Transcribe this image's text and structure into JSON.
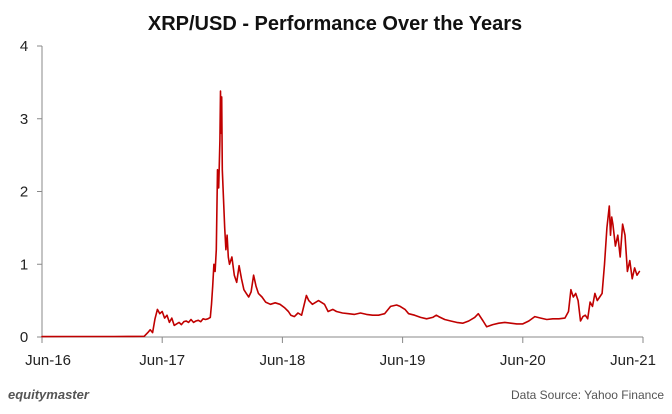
{
  "chart_data": {
    "type": "line",
    "title": "XRP/USD - Performance Over the Years",
    "xlabel": "",
    "ylabel": "",
    "x_ticks": [
      "Jun-16",
      "Jun-17",
      "Jun-18",
      "Jun-19",
      "Jun-20",
      "Jun-21"
    ],
    "x_tick_values": [
      2016.5,
      2017.5,
      2018.5,
      2019.5,
      2020.5,
      2021.5
    ],
    "xlim": [
      2016.5,
      2021.5
    ],
    "ylim": [
      0,
      4
    ],
    "y_ticks": [
      0,
      1,
      2,
      3,
      4
    ],
    "grid": false,
    "legend": "none",
    "series": [
      {
        "name": "",
        "color": "#c00000",
        "points": [
          [
            2016.5,
            0.006
          ],
          [
            2016.7,
            0.007
          ],
          [
            2016.9,
            0.007
          ],
          [
            2017.1,
            0.007
          ],
          [
            2017.25,
            0.008
          ],
          [
            2017.35,
            0.01
          ],
          [
            2017.38,
            0.06
          ],
          [
            2017.4,
            0.1
          ],
          [
            2017.42,
            0.06
          ],
          [
            2017.44,
            0.25
          ],
          [
            2017.46,
            0.38
          ],
          [
            2017.48,
            0.32
          ],
          [
            2017.5,
            0.35
          ],
          [
            2017.52,
            0.26
          ],
          [
            2017.54,
            0.3
          ],
          [
            2017.56,
            0.2
          ],
          [
            2017.58,
            0.26
          ],
          [
            2017.6,
            0.16
          ],
          [
            2017.62,
            0.18
          ],
          [
            2017.64,
            0.2
          ],
          [
            2017.66,
            0.17
          ],
          [
            2017.68,
            0.21
          ],
          [
            2017.7,
            0.22
          ],
          [
            2017.72,
            0.2
          ],
          [
            2017.74,
            0.24
          ],
          [
            2017.76,
            0.2
          ],
          [
            2017.78,
            0.22
          ],
          [
            2017.8,
            0.23
          ],
          [
            2017.82,
            0.21
          ],
          [
            2017.84,
            0.25
          ],
          [
            2017.86,
            0.24
          ],
          [
            2017.88,
            0.25
          ],
          [
            2017.9,
            0.27
          ],
          [
            2017.91,
            0.45
          ],
          [
            2017.92,
            0.7
          ],
          [
            2017.93,
            1.0
          ],
          [
            2017.94,
            0.9
          ],
          [
            2017.95,
            1.2
          ],
          [
            2017.96,
            2.3
          ],
          [
            2017.97,
            2.05
          ],
          [
            2017.98,
            2.7
          ],
          [
            2017.985,
            3.38
          ],
          [
            2017.99,
            2.8
          ],
          [
            2017.995,
            3.3
          ],
          [
            2018.0,
            2.3
          ],
          [
            2018.01,
            1.9
          ],
          [
            2018.02,
            1.5
          ],
          [
            2018.03,
            1.2
          ],
          [
            2018.04,
            1.4
          ],
          [
            2018.05,
            1.1
          ],
          [
            2018.06,
            1.0
          ],
          [
            2018.08,
            1.1
          ],
          [
            2018.1,
            0.85
          ],
          [
            2018.12,
            0.75
          ],
          [
            2018.14,
            0.98
          ],
          [
            2018.16,
            0.8
          ],
          [
            2018.18,
            0.65
          ],
          [
            2018.2,
            0.6
          ],
          [
            2018.22,
            0.55
          ],
          [
            2018.24,
            0.62
          ],
          [
            2018.26,
            0.85
          ],
          [
            2018.28,
            0.7
          ],
          [
            2018.3,
            0.6
          ],
          [
            2018.33,
            0.55
          ],
          [
            2018.36,
            0.48
          ],
          [
            2018.4,
            0.45
          ],
          [
            2018.44,
            0.47
          ],
          [
            2018.48,
            0.45
          ],
          [
            2018.52,
            0.4
          ],
          [
            2018.55,
            0.35
          ],
          [
            2018.57,
            0.3
          ],
          [
            2018.6,
            0.28
          ],
          [
            2018.63,
            0.33
          ],
          [
            2018.66,
            0.3
          ],
          [
            2018.7,
            0.57
          ],
          [
            2018.72,
            0.5
          ],
          [
            2018.75,
            0.45
          ],
          [
            2018.8,
            0.5
          ],
          [
            2018.85,
            0.45
          ],
          [
            2018.88,
            0.35
          ],
          [
            2018.92,
            0.38
          ],
          [
            2018.95,
            0.35
          ],
          [
            2019.0,
            0.33
          ],
          [
            2019.05,
            0.32
          ],
          [
            2019.1,
            0.31
          ],
          [
            2019.15,
            0.33
          ],
          [
            2019.2,
            0.31
          ],
          [
            2019.25,
            0.3
          ],
          [
            2019.3,
            0.3
          ],
          [
            2019.35,
            0.32
          ],
          [
            2019.4,
            0.42
          ],
          [
            2019.45,
            0.44
          ],
          [
            2019.48,
            0.42
          ],
          [
            2019.52,
            0.38
          ],
          [
            2019.55,
            0.32
          ],
          [
            2019.6,
            0.3
          ],
          [
            2019.65,
            0.27
          ],
          [
            2019.7,
            0.25
          ],
          [
            2019.75,
            0.27
          ],
          [
            2019.78,
            0.3
          ],
          [
            2019.8,
            0.28
          ],
          [
            2019.85,
            0.24
          ],
          [
            2019.9,
            0.22
          ],
          [
            2019.95,
            0.2
          ],
          [
            2020.0,
            0.19
          ],
          [
            2020.05,
            0.22
          ],
          [
            2020.1,
            0.27
          ],
          [
            2020.13,
            0.32
          ],
          [
            2020.17,
            0.22
          ],
          [
            2020.2,
            0.14
          ],
          [
            2020.25,
            0.17
          ],
          [
            2020.3,
            0.19
          ],
          [
            2020.35,
            0.2
          ],
          [
            2020.4,
            0.19
          ],
          [
            2020.45,
            0.18
          ],
          [
            2020.5,
            0.18
          ],
          [
            2020.55,
            0.22
          ],
          [
            2020.6,
            0.28
          ],
          [
            2020.65,
            0.26
          ],
          [
            2020.7,
            0.24
          ],
          [
            2020.75,
            0.25
          ],
          [
            2020.8,
            0.25
          ],
          [
            2020.85,
            0.26
          ],
          [
            2020.88,
            0.35
          ],
          [
            2020.9,
            0.65
          ],
          [
            2020.92,
            0.55
          ],
          [
            2020.94,
            0.6
          ],
          [
            2020.96,
            0.5
          ],
          [
            2020.98,
            0.22
          ],
          [
            2021.0,
            0.28
          ],
          [
            2021.02,
            0.3
          ],
          [
            2021.04,
            0.25
          ],
          [
            2021.06,
            0.48
          ],
          [
            2021.08,
            0.42
          ],
          [
            2021.1,
            0.6
          ],
          [
            2021.12,
            0.5
          ],
          [
            2021.14,
            0.55
          ],
          [
            2021.16,
            0.6
          ],
          [
            2021.18,
            1.0
          ],
          [
            2021.2,
            1.5
          ],
          [
            2021.22,
            1.8
          ],
          [
            2021.23,
            1.4
          ],
          [
            2021.24,
            1.65
          ],
          [
            2021.25,
            1.55
          ],
          [
            2021.27,
            1.25
          ],
          [
            2021.29,
            1.4
          ],
          [
            2021.31,
            1.1
          ],
          [
            2021.33,
            1.55
          ],
          [
            2021.35,
            1.4
          ],
          [
            2021.37,
            0.9
          ],
          [
            2021.39,
            1.05
          ],
          [
            2021.41,
            0.8
          ],
          [
            2021.43,
            0.95
          ],
          [
            2021.45,
            0.85
          ],
          [
            2021.47,
            0.9
          ]
        ]
      }
    ]
  },
  "footer": {
    "brand": "equitymaster",
    "source": "Data Source: Yahoo Finance"
  }
}
